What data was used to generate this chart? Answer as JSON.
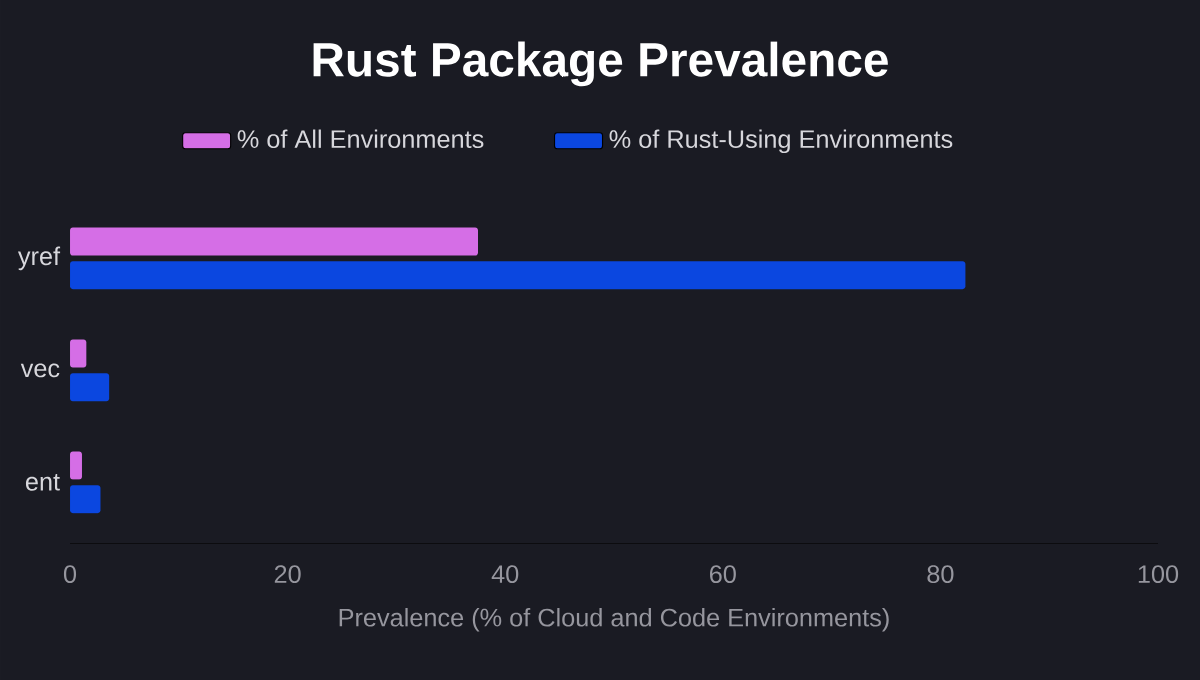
{
  "chart_data": {
    "type": "bar",
    "orientation": "horizontal",
    "title": "Rust Package Prevalence",
    "xlabel": "Prevalence (% of Cloud and Code Environments)",
    "categories": [
      "yref",
      "vec",
      "ent"
    ],
    "series": [
      {
        "name": "% of All Environments",
        "color": "#d56ee6",
        "values": [
          37.5,
          1.5,
          1.1
        ]
      },
      {
        "name": "% of Rust-Using Environments",
        "color": "#0b47e0",
        "values": [
          82.3,
          3.6,
          2.8
        ]
      }
    ],
    "xlim": [
      0,
      100
    ],
    "xticks": [
      0,
      20,
      40,
      60,
      80,
      100
    ],
    "grid": false,
    "legend": "top"
  }
}
